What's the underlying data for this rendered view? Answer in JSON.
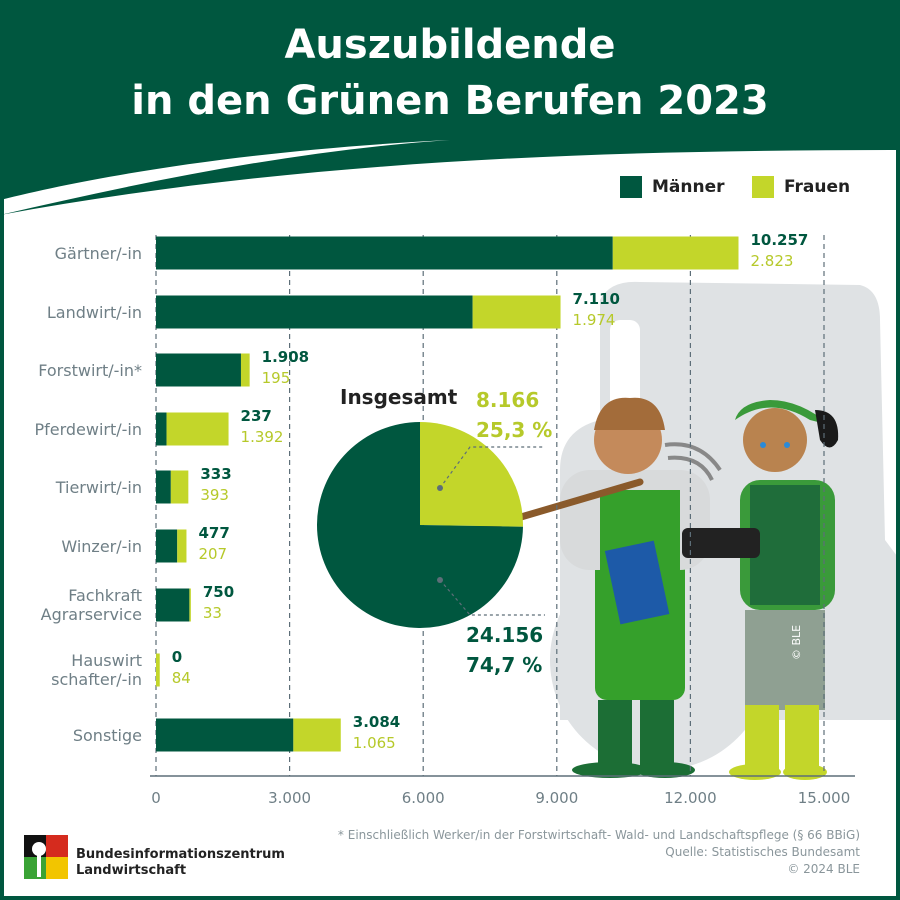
{
  "title_line1": "Auszubildende",
  "title_line2": "in den Grünen Berufen 2023",
  "colors": {
    "maenner": "#00573f",
    "frauen": "#c3d62a",
    "header": "#00573f"
  },
  "chart_data": {
    "type": "bar",
    "orientation": "horizontal",
    "stacked": true,
    "categories": [
      "Gärtner/-in",
      "Landwirt/-in",
      "Forstwirt/-in*",
      "Pferdewirt/-in",
      "Tierwirt/-in",
      "Winzer/-in",
      "Fachkraft Agrarservice",
      "Hauswirt schafter/-in",
      "Sonstige"
    ],
    "category_labels": [
      "Gärtner/-in",
      "Landwirt/-in",
      "Forstwirt/-in*",
      "Pferdewirt/-in",
      "Tierwirt/-in",
      "Winzer/-in",
      "Fachkraft\nAgrarservice",
      "Hauswirt\nschafter/-in",
      "Sonstige"
    ],
    "series": [
      {
        "name": "Männer",
        "values": [
          10257,
          7110,
          1908,
          237,
          333,
          477,
          750,
          0,
          3084
        ],
        "labels": [
          "10.257",
          "7.110",
          "1.908",
          "237",
          "333",
          "477",
          "750",
          "0",
          "3.084"
        ]
      },
      {
        "name": "Frauen",
        "values": [
          2823,
          1974,
          195,
          1392,
          393,
          207,
          33,
          84,
          1065
        ],
        "labels": [
          "2.823",
          "1.974",
          "195",
          "1.392",
          "393",
          "207",
          "33",
          "84",
          "1.065"
        ]
      }
    ],
    "xlim": [
      0,
      15000
    ],
    "xticks": [
      0,
      3000,
      6000,
      9000,
      12000,
      15000
    ],
    "xtick_labels": [
      "0",
      "3.000",
      "6.000",
      "9.000",
      "12.000",
      "15.000"
    ],
    "grid": "vertical dashed",
    "legend": "top-right",
    "pie": {
      "title": "Insgesamt",
      "slices": [
        {
          "name": "Frauen",
          "value": 8166,
          "value_label": "8.166",
          "percent_label": "25,3 %",
          "percent": 25.3
        },
        {
          "name": "Männer",
          "value": 24156,
          "value_label": "24.156",
          "percent_label": "74,7 %",
          "percent": 74.7
        }
      ]
    }
  },
  "footer": {
    "note": "* Einschließlich Werker/in der Forstwirtschaft- Wald- und Landschaftspflege (§ 66 BBiG)",
    "source": "Quelle: Statistisches Bundesamt",
    "copyright": "© 2024 BLE",
    "logo_line1": "Bundesinformationszentrum",
    "logo_line2": "Landwirtschaft",
    "image_credit": "© BLE"
  }
}
